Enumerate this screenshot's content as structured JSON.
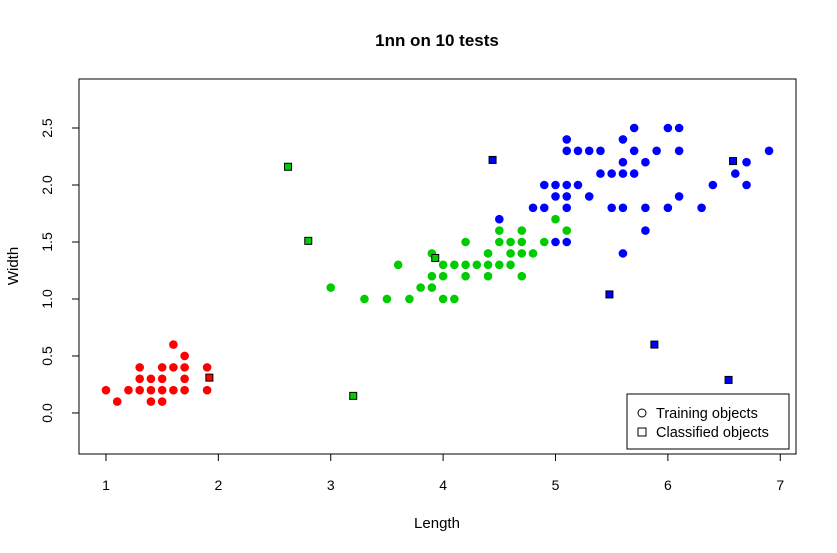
{
  "chart_data": {
    "type": "scatter",
    "title": "1nn on 10 tests",
    "xlabel": "Length",
    "ylabel": "Width",
    "xlim": [
      0.76,
      7.14
    ],
    "ylim": [
      -0.36,
      2.93
    ],
    "x_ticks": [
      "1",
      "2",
      "3",
      "4",
      "5",
      "6",
      "7"
    ],
    "y_ticks": [
      "0.0",
      "0.5",
      "1.0",
      "1.5",
      "2.0",
      "2.5"
    ],
    "grid": false,
    "legend": {
      "position": "bottom-right",
      "entries": [
        {
          "label": "Training objects",
          "shape": "circle"
        },
        {
          "label": "Classified objects",
          "shape": "square"
        }
      ]
    },
    "classes": [
      {
        "color": "#ff0000"
      },
      {
        "color": "#00cd00"
      },
      {
        "color": "#0000ff"
      }
    ],
    "training": [
      {
        "class": 0,
        "points": [
          [
            1.0,
            0.2
          ],
          [
            1.1,
            0.1
          ],
          [
            1.2,
            0.2
          ],
          [
            1.3,
            0.2
          ],
          [
            1.3,
            0.3
          ],
          [
            1.3,
            0.4
          ],
          [
            1.4,
            0.1
          ],
          [
            1.4,
            0.2
          ],
          [
            1.4,
            0.3
          ],
          [
            1.5,
            0.1
          ],
          [
            1.5,
            0.2
          ],
          [
            1.5,
            0.3
          ],
          [
            1.5,
            0.4
          ],
          [
            1.6,
            0.2
          ],
          [
            1.6,
            0.4
          ],
          [
            1.6,
            0.6
          ],
          [
            1.7,
            0.2
          ],
          [
            1.7,
            0.3
          ],
          [
            1.7,
            0.4
          ],
          [
            1.7,
            0.5
          ],
          [
            1.9,
            0.2
          ],
          [
            1.9,
            0.4
          ]
        ]
      },
      {
        "class": 1,
        "points": [
          [
            3.0,
            1.1
          ],
          [
            3.3,
            1.0
          ],
          [
            3.5,
            1.0
          ],
          [
            3.6,
            1.3
          ],
          [
            3.7,
            1.0
          ],
          [
            3.8,
            1.1
          ],
          [
            3.9,
            1.1
          ],
          [
            3.9,
            1.2
          ],
          [
            3.9,
            1.4
          ],
          [
            4.0,
            1.0
          ],
          [
            4.0,
            1.2
          ],
          [
            4.0,
            1.3
          ],
          [
            4.1,
            1.0
          ],
          [
            4.1,
            1.3
          ],
          [
            4.2,
            1.2
          ],
          [
            4.2,
            1.3
          ],
          [
            4.2,
            1.5
          ],
          [
            4.3,
            1.3
          ],
          [
            4.4,
            1.2
          ],
          [
            4.4,
            1.3
          ],
          [
            4.4,
            1.4
          ],
          [
            4.5,
            1.3
          ],
          [
            4.5,
            1.5
          ],
          [
            4.5,
            1.6
          ],
          [
            4.6,
            1.3
          ],
          [
            4.6,
            1.4
          ],
          [
            4.6,
            1.5
          ],
          [
            4.7,
            1.2
          ],
          [
            4.7,
            1.4
          ],
          [
            4.7,
            1.5
          ],
          [
            4.7,
            1.6
          ],
          [
            4.8,
            1.4
          ],
          [
            4.9,
            1.5
          ],
          [
            5.0,
            1.7
          ],
          [
            5.1,
            1.6
          ]
        ]
      },
      {
        "class": 2,
        "points": [
          [
            4.5,
            1.7
          ],
          [
            4.8,
            1.8
          ],
          [
            4.9,
            1.8
          ],
          [
            4.9,
            2.0
          ],
          [
            5.0,
            1.5
          ],
          [
            5.0,
            1.9
          ],
          [
            5.0,
            2.0
          ],
          [
            5.1,
            1.5
          ],
          [
            5.1,
            1.8
          ],
          [
            5.1,
            1.9
          ],
          [
            5.1,
            2.0
          ],
          [
            5.1,
            2.3
          ],
          [
            5.1,
            2.4
          ],
          [
            5.2,
            2.0
          ],
          [
            5.2,
            2.3
          ],
          [
            5.3,
            1.9
          ],
          [
            5.3,
            2.3
          ],
          [
            5.4,
            2.1
          ],
          [
            5.4,
            2.3
          ],
          [
            5.5,
            1.8
          ],
          [
            5.5,
            2.1
          ],
          [
            5.6,
            1.4
          ],
          [
            5.6,
            1.8
          ],
          [
            5.6,
            2.1
          ],
          [
            5.6,
            2.2
          ],
          [
            5.6,
            2.4
          ],
          [
            5.7,
            2.1
          ],
          [
            5.7,
            2.3
          ],
          [
            5.7,
            2.5
          ],
          [
            5.8,
            1.6
          ],
          [
            5.8,
            1.8
          ],
          [
            5.8,
            2.2
          ],
          [
            5.9,
            2.3
          ],
          [
            6.0,
            1.8
          ],
          [
            6.0,
            2.5
          ],
          [
            6.1,
            1.9
          ],
          [
            6.1,
            2.3
          ],
          [
            6.1,
            2.5
          ],
          [
            6.3,
            1.8
          ],
          [
            6.4,
            2.0
          ],
          [
            6.6,
            2.1
          ],
          [
            6.7,
            2.0
          ],
          [
            6.7,
            2.2
          ],
          [
            6.9,
            2.3
          ]
        ]
      }
    ],
    "classified": [
      {
        "x": 1.92,
        "y": 0.31,
        "color": "#ff0000"
      },
      {
        "x": 2.62,
        "y": 2.16,
        "color": "#00cd00"
      },
      {
        "x": 2.8,
        "y": 1.51,
        "color": "#00cd00"
      },
      {
        "x": 3.2,
        "y": 0.15,
        "color": "#00cd00"
      },
      {
        "x": 3.93,
        "y": 1.36,
        "color": "#00cd00"
      },
      {
        "x": 4.44,
        "y": 2.22,
        "color": "#0000ff"
      },
      {
        "x": 5.48,
        "y": 1.04,
        "color": "#0000ff"
      },
      {
        "x": 5.88,
        "y": 0.6,
        "color": "#0000ff"
      },
      {
        "x": 6.54,
        "y": 0.29,
        "color": "#0000ff"
      },
      {
        "x": 6.58,
        "y": 2.21,
        "color": "#0000ff"
      }
    ]
  }
}
